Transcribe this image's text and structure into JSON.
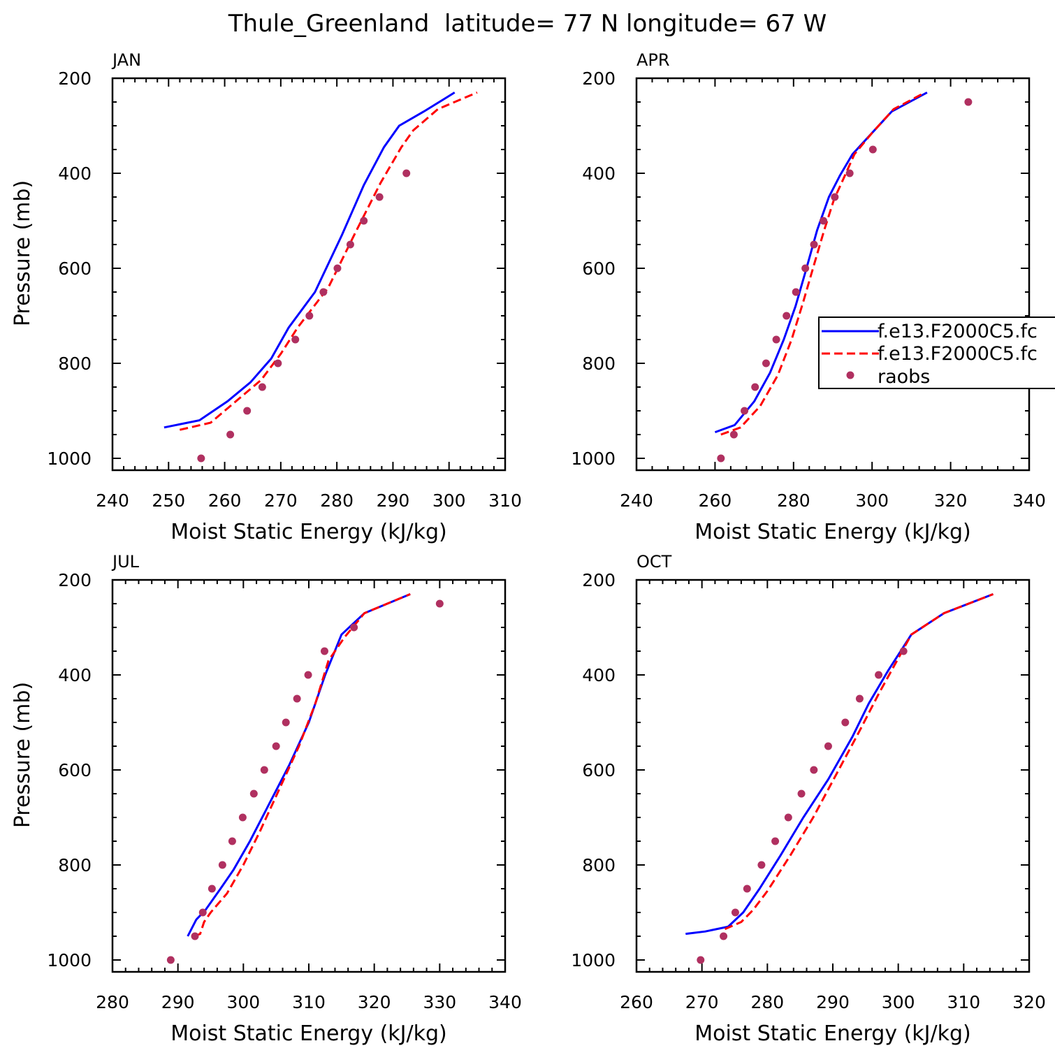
{
  "figure_title": "Thule_Greenland  latitude= 77 N longitude= 67 W",
  "legend": {
    "entries": [
      "f.e13.F2000C5.fc",
      "f.e13.F2000C5.fc",
      "raobs"
    ],
    "styles": [
      "solid",
      "dashed",
      "marker"
    ]
  },
  "colors": {
    "model1": "#0000ff",
    "model2": "#ff0000",
    "raobs": "#b03060"
  },
  "chart_data": [
    {
      "type": "line",
      "title": "JAN",
      "xlabel": "Moist Static Energy (kJ/kg)",
      "ylabel": "Pressure (mb)",
      "xlim": [
        240,
        310
      ],
      "ylim": [
        1000,
        200
      ],
      "xticks": [
        240,
        250,
        260,
        270,
        280,
        290,
        300,
        310
      ],
      "yticks": [
        200,
        400,
        600,
        800,
        1000
      ],
      "series": [
        {
          "style": "solid",
          "x": [
            249.2,
            255.5,
            260.5,
            264.6,
            268.3,
            271.4,
            276.1,
            280.9,
            284.8,
            288.4,
            291.1,
            295.5,
            301.0
          ],
          "y": [
            935,
            920,
            880,
            840,
            790,
            725,
            650,
            530,
            425,
            345,
            300,
            270,
            230
          ]
        },
        {
          "style": "dashed",
          "x": [
            252.0,
            257.5,
            262.0,
            266.5,
            270.0,
            273.0,
            278.5,
            283.3,
            287.8,
            291.5,
            293.6,
            298.0,
            305.0
          ],
          "y": [
            940,
            925,
            880,
            835,
            780,
            725,
            640,
            525,
            420,
            345,
            310,
            265,
            230
          ]
        },
        {
          "style": "marker",
          "x": [
            255.8,
            261.0,
            264.0,
            266.7,
            269.5,
            272.6,
            275.1,
            277.6,
            280.1,
            282.4,
            284.8,
            287.6,
            292.4
          ],
          "y": [
            1000,
            950,
            900,
            850,
            800,
            750,
            700,
            650,
            600,
            550,
            500,
            450,
            400
          ]
        }
      ]
    },
    {
      "type": "line",
      "title": "APR",
      "xlabel": "Moist Static Energy (kJ/kg)",
      "ylabel": "",
      "xlim": [
        240,
        340
      ],
      "ylim": [
        1000,
        200
      ],
      "xticks": [
        240,
        260,
        280,
        300,
        320,
        340
      ],
      "yticks": [
        200,
        400,
        600,
        800,
        1000
      ],
      "series": [
        {
          "style": "solid",
          "x": [
            260.0,
            265.0,
            270.0,
            274.0,
            277.5,
            280.5,
            283.3,
            286.0,
            289.0,
            291.8,
            295.0,
            300.0,
            305.0,
            314.0
          ],
          "y": [
            945,
            930,
            880,
            820,
            750,
            680,
            600,
            520,
            450,
            405,
            360,
            315,
            270,
            230
          ]
        },
        {
          "style": "dashed",
          "x": [
            261.5,
            266.5,
            271.5,
            276.0,
            279.5,
            282.5,
            285.3,
            287.8,
            290.3,
            292.8,
            295.5,
            300.0,
            305.5,
            313.5
          ],
          "y": [
            950,
            935,
            890,
            825,
            750,
            670,
            590,
            520,
            455,
            410,
            360,
            315,
            265,
            230
          ]
        },
        {
          "style": "marker",
          "x": [
            261.5,
            264.8,
            267.5,
            270.2,
            273.0,
            275.6,
            278.2,
            280.6,
            283.0,
            285.2,
            287.6,
            290.5,
            294.3,
            300.2,
            324.5
          ],
          "y": [
            1000,
            950,
            900,
            850,
            800,
            750,
            700,
            650,
            600,
            550,
            500,
            450,
            400,
            350,
            250
          ]
        }
      ]
    },
    {
      "type": "line",
      "title": "JUL",
      "xlabel": "Moist Static Energy (kJ/kg)",
      "ylabel": "Pressure (mb)",
      "xlim": [
        280,
        340
      ],
      "ylim": [
        1000,
        200
      ],
      "xticks": [
        280,
        290,
        300,
        310,
        320,
        330,
        340
      ],
      "yticks": [
        200,
        400,
        600,
        800,
        1000
      ],
      "series": [
        {
          "style": "solid",
          "x": [
            291.5,
            292.8,
            294.2,
            296.5,
            298.5,
            301.0,
            304.0,
            307.0,
            310.0,
            312.5,
            315.0,
            318.5,
            325.5
          ],
          "y": [
            950,
            915,
            895,
            850,
            810,
            750,
            670,
            590,
            500,
            400,
            315,
            270,
            230
          ]
        },
        {
          "style": "dashed",
          "x": [
            292.5,
            293.4,
            294.0,
            295.0,
            297.5,
            300.0,
            302.5,
            305.5,
            308.5,
            311.0,
            313.0,
            315.5,
            318.5,
            325.5
          ],
          "y": [
            950,
            945,
            920,
            900,
            860,
            800,
            730,
            640,
            550,
            460,
            370,
            320,
            270,
            230
          ]
        },
        {
          "style": "marker",
          "x": [
            288.9,
            292.6,
            293.8,
            295.2,
            296.8,
            298.3,
            299.9,
            301.6,
            303.2,
            305.0,
            306.5,
            308.2,
            309.9,
            312.4,
            316.9,
            330.0
          ],
          "y": [
            1000,
            950,
            900,
            850,
            800,
            750,
            700,
            650,
            600,
            550,
            500,
            450,
            400,
            350,
            300,
            250
          ]
        }
      ]
    },
    {
      "type": "line",
      "title": "OCT",
      "xlabel": "Moist Static Energy (kJ/kg)",
      "ylabel": "",
      "xlim": [
        260,
        320
      ],
      "ylim": [
        1000,
        200
      ],
      "xticks": [
        260,
        270,
        280,
        290,
        300,
        310,
        320
      ],
      "yticks": [
        200,
        400,
        600,
        800,
        1000
      ],
      "series": [
        {
          "style": "solid",
          "x": [
            267.5,
            270.5,
            274.0,
            276.3,
            278.8,
            282.0,
            285.5,
            289.3,
            293.0,
            295.5,
            298.5,
            302.0,
            307.0,
            314.5
          ],
          "y": [
            945,
            940,
            930,
            900,
            850,
            780,
            700,
            620,
            530,
            460,
            390,
            315,
            270,
            230
          ]
        },
        {
          "style": "dashed",
          "x": [
            273.5,
            276.0,
            277.8,
            280.0,
            283.5,
            287.0,
            290.5,
            294.0,
            297.0,
            302.0,
            307.0,
            314.5
          ],
          "y": [
            935,
            920,
            895,
            855,
            780,
            700,
            610,
            520,
            440,
            315,
            270,
            230
          ]
        },
        {
          "style": "marker",
          "x": [
            269.8,
            273.3,
            275.1,
            276.9,
            279.1,
            281.2,
            283.2,
            285.2,
            287.1,
            289.3,
            291.9,
            294.1,
            297.0,
            300.8
          ],
          "y": [
            1000,
            950,
            900,
            850,
            800,
            750,
            700,
            650,
            600,
            550,
            500,
            450,
            400,
            350
          ]
        }
      ]
    }
  ]
}
